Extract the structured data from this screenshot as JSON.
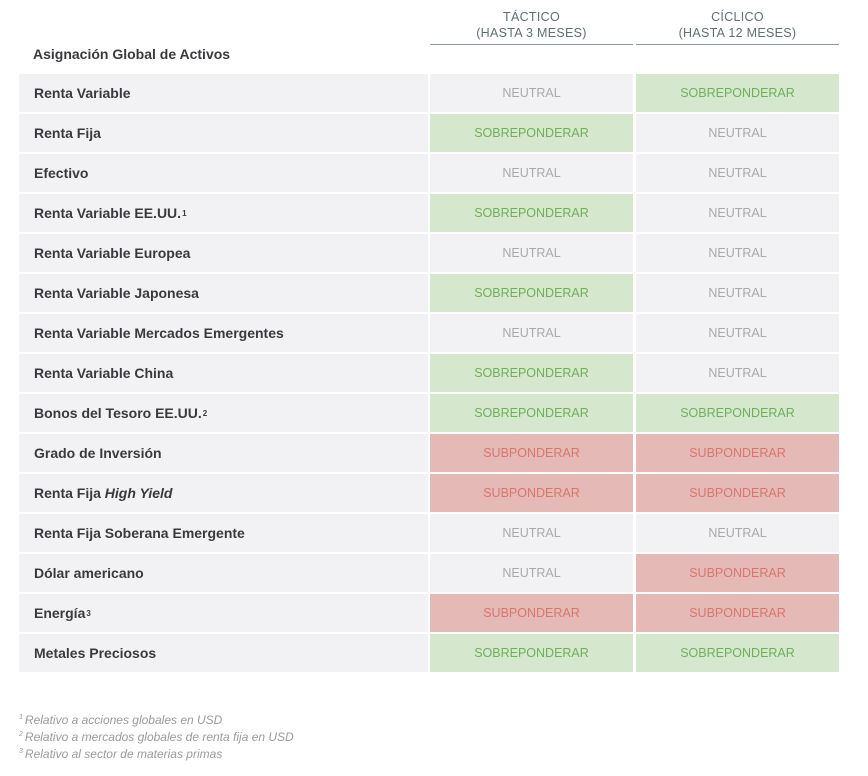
{
  "header": {
    "title": "Asignación Global de Activos",
    "columns": [
      {
        "name": "TÁCTICO",
        "sub": "(HASTA 3 MESES)"
      },
      {
        "name": "CÍCLICO",
        "sub": "(HASTA 12 MESES)"
      }
    ]
  },
  "tones": {
    "neutral": {
      "bg": "#f2f2f4",
      "color": "#a9a9ad"
    },
    "over": {
      "bg": "#d5e8cd",
      "color": "#6fae5c"
    },
    "under": {
      "bg": "#e4b9b6",
      "color": "#d9756c"
    }
  },
  "table": {
    "rows": [
      {
        "label": "Renta Variable",
        "cells": [
          {
            "text": "NEUTRAL",
            "tone": "neutral"
          },
          {
            "text": "SOBREPONDERAR",
            "tone": "over"
          }
        ]
      },
      {
        "label": "Renta Fija",
        "cells": [
          {
            "text": "SOBREPONDERAR",
            "tone": "over"
          },
          {
            "text": "NEUTRAL",
            "tone": "neutral"
          }
        ]
      },
      {
        "label": "Efectivo",
        "cells": [
          {
            "text": "NEUTRAL",
            "tone": "neutral"
          },
          {
            "text": "NEUTRAL",
            "tone": "neutral"
          }
        ]
      },
      {
        "label": "Renta Variable EE.UU.",
        "sup": "1",
        "cells": [
          {
            "text": "SOBREPONDERAR",
            "tone": "over"
          },
          {
            "text": "NEUTRAL",
            "tone": "neutral"
          }
        ]
      },
      {
        "label": "Renta Variable Europea",
        "cells": [
          {
            "text": "NEUTRAL",
            "tone": "neutral"
          },
          {
            "text": "NEUTRAL",
            "tone": "neutral"
          }
        ]
      },
      {
        "label": "Renta Variable Japonesa",
        "cells": [
          {
            "text": "SOBREPONDERAR",
            "tone": "over"
          },
          {
            "text": "NEUTRAL",
            "tone": "neutral"
          }
        ]
      },
      {
        "label": "Renta Variable Mercados Emergentes",
        "cells": [
          {
            "text": "NEUTRAL",
            "tone": "neutral"
          },
          {
            "text": "NEUTRAL",
            "tone": "neutral"
          }
        ]
      },
      {
        "label": "Renta Variable China",
        "cells": [
          {
            "text": "SOBREPONDERAR",
            "tone": "over"
          },
          {
            "text": "NEUTRAL",
            "tone": "neutral"
          }
        ]
      },
      {
        "label": "Bonos del Tesoro EE.UU.",
        "sup": "2",
        "cells": [
          {
            "text": "SOBREPONDERAR",
            "tone": "over"
          },
          {
            "text": "SOBREPONDERAR",
            "tone": "over"
          }
        ]
      },
      {
        "label": "Grado de Inversión",
        "cells": [
          {
            "text": "SUBPONDERAR",
            "tone": "under"
          },
          {
            "text": "SUBPONDERAR",
            "tone": "under"
          }
        ]
      },
      {
        "label": "Renta Fija",
        "italic": "High Yield",
        "cells": [
          {
            "text": "SUBPONDERAR",
            "tone": "under"
          },
          {
            "text": "SUBPONDERAR",
            "tone": "under"
          }
        ]
      },
      {
        "label": "Renta Fija Soberana Emergente",
        "cells": [
          {
            "text": "NEUTRAL",
            "tone": "neutral"
          },
          {
            "text": "NEUTRAL",
            "tone": "neutral"
          }
        ]
      },
      {
        "label": "Dólar americano",
        "cells": [
          {
            "text": "NEUTRAL",
            "tone": "neutral"
          },
          {
            "text": "SUBPONDERAR",
            "tone": "under"
          }
        ]
      },
      {
        "label": "Energía",
        "sup": "3",
        "cells": [
          {
            "text": "SUBPONDERAR",
            "tone": "under"
          },
          {
            "text": "SUBPONDERAR",
            "tone": "under"
          }
        ]
      },
      {
        "label": "Metales Preciosos",
        "cells": [
          {
            "text": "SOBREPONDERAR",
            "tone": "over"
          },
          {
            "text": "SOBREPONDERAR",
            "tone": "over"
          }
        ]
      }
    ]
  },
  "footnotes": [
    {
      "mark": "1",
      "text": "Relativo a acciones globales en USD"
    },
    {
      "mark": "2",
      "text": "Relativo a mercados globales de renta fija en USD"
    },
    {
      "mark": "3",
      "text": "Relativo al sector de materias primas"
    }
  ]
}
